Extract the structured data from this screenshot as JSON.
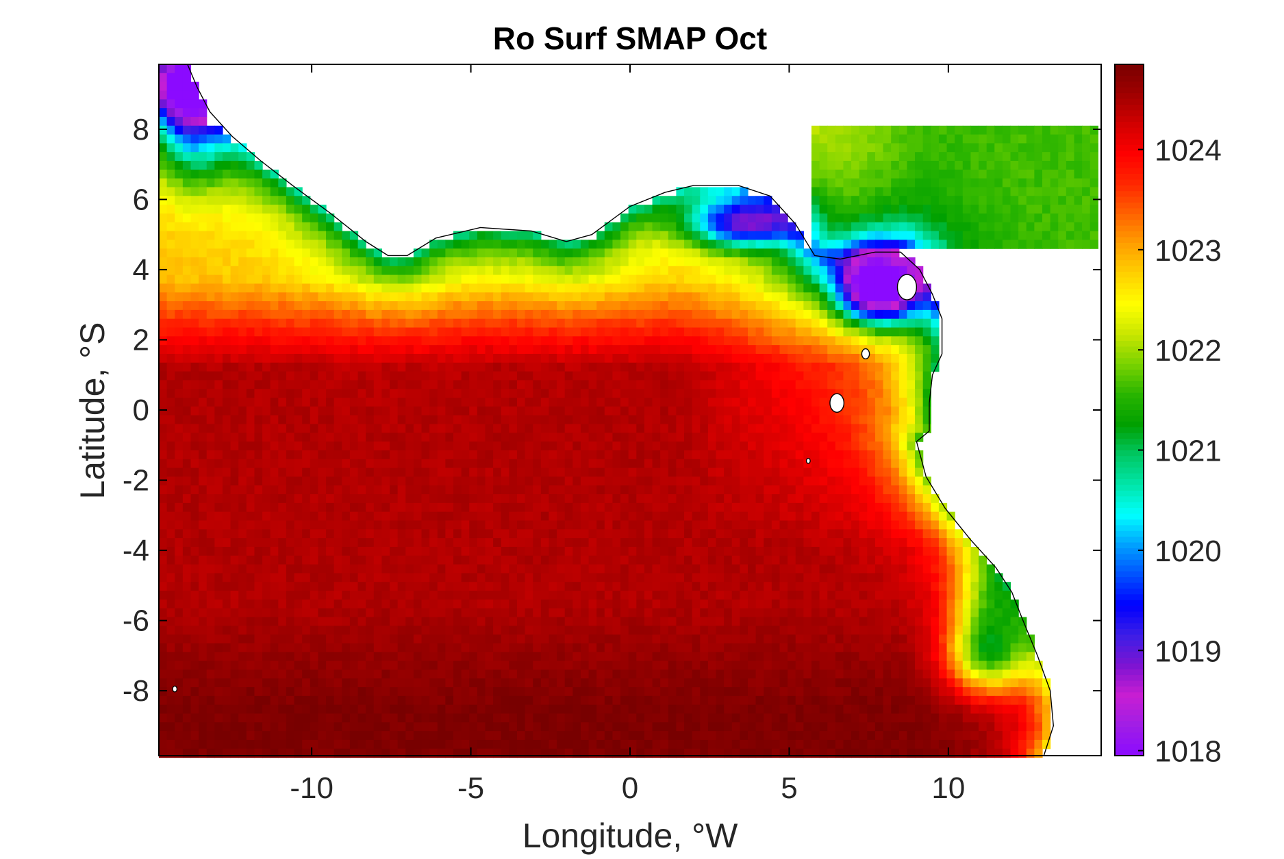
{
  "chart_data": {
    "type": "heatmap",
    "title": "Ro Surf SMAP Oct",
    "xlabel": "Longitude, °W",
    "ylabel": "Latitude, °S",
    "xlim": [
      -14.8,
      14.8
    ],
    "ylim": [
      -9.85,
      9.85
    ],
    "xticks": [
      -10,
      -5,
      0,
      5,
      10
    ],
    "yticks": [
      8,
      6,
      4,
      2,
      0,
      -2,
      -4,
      -6,
      -8
    ],
    "colorbar": {
      "ticks": [
        1024,
        1023,
        1022,
        1021,
        1020,
        1019,
        1018
      ],
      "range": [
        1017.95,
        1024.85
      ],
      "colors": [
        "#8b0aff",
        "#a01ee6",
        "#c81ed2",
        "#7d14d2",
        "#3c1ee6",
        "#0000ff",
        "#0050ff",
        "#00a0ff",
        "#00ffff",
        "#00e6aa",
        "#00c864",
        "#00a000",
        "#28b400",
        "#78d200",
        "#c8e600",
        "#ffff00",
        "#ffd200",
        "#ffa000",
        "#ff6400",
        "#ff2800",
        "#ff0000",
        "#d20000",
        "#a00000",
        "#780000"
      ]
    },
    "field_description": {
      "open_ocean_south": 1024.6,
      "open_ocean_central": 1024.0,
      "equatorial_band_lat_2_to_3": 1023.0,
      "northern_coastal_band_lat_4_to_7": 1022.0,
      "niger_delta_and_bight_of_biafra": 1018.5,
      "congo_plume_lat_minus_6_to_minus_8": 1021.5
    },
    "colors": {
      "land": "#ffffff",
      "coastline": "#000000",
      "frame": "#000000"
    }
  }
}
